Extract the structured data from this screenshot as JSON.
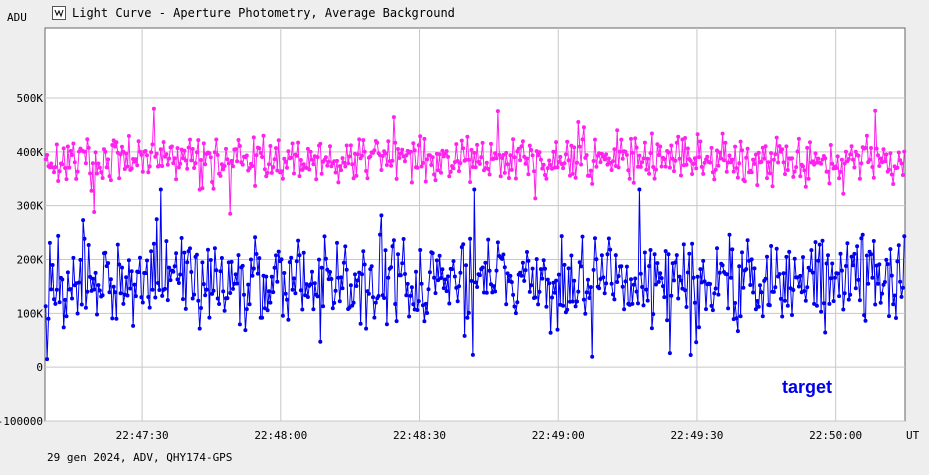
{
  "window": {
    "title": "Light Curve - Aperture Photometry, Average Background",
    "icon": "light-curve-icon"
  },
  "footer": "29 gen 2024, ADV, QHY174-GPS",
  "colors": {
    "background": "#eeeeee",
    "plot_background": "#ffffff",
    "grid": "#c8c8c8",
    "comparison": "#ff22ee",
    "target": "#0000ee"
  },
  "chart_data": {
    "type": "line",
    "title": "Light Curve - Aperture Photometry, Average Background",
    "xlabel": "UT",
    "ylabel": "ADU",
    "x_ticks": [
      "22:47:30",
      "22:48:00",
      "22:48:30",
      "22:49:00",
      "22:49:30",
      "22:50:00"
    ],
    "y_ticks": [
      {
        "value": 500000,
        "label": "500K"
      },
      {
        "value": 400000,
        "label": "400K"
      },
      {
        "value": 300000,
        "label": "300K"
      },
      {
        "value": 200000,
        "label": "200K"
      },
      {
        "value": 100000,
        "label": "100K"
      },
      {
        "value": 0,
        "label": "0"
      },
      {
        "value": -100000,
        "label": "-100000"
      }
    ],
    "xlim": [
      "22:47:09",
      "22:50:15"
    ],
    "ylim": [
      -100000,
      630000
    ],
    "grid": true,
    "series": [
      {
        "name": "",
        "color": "#ff22ee",
        "marker": "dot",
        "count": 620,
        "mean": 385000,
        "spread": 28000,
        "min": 280000,
        "max": 480000,
        "seed": 17
      },
      {
        "name": "target",
        "color": "#0000ee",
        "marker": "dot",
        "count": 620,
        "mean": 160000,
        "spread": 55000,
        "min": 15000,
        "max": 330000,
        "seed": 91
      }
    ],
    "annotations": [
      {
        "text": "target",
        "color": "#0000ee"
      }
    ]
  }
}
